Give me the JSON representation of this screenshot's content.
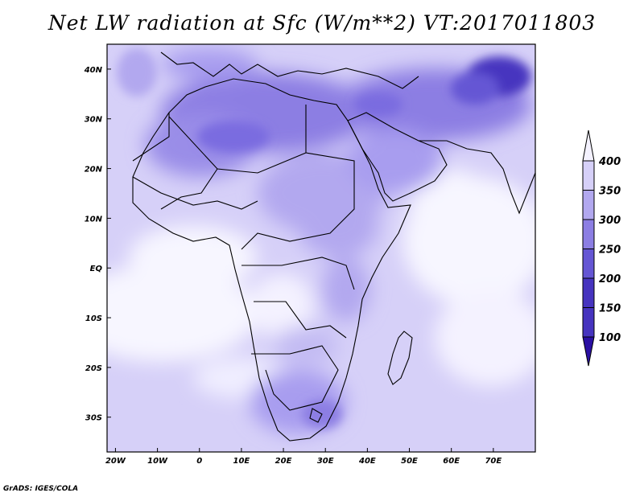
{
  "title": "Net LW radiation at Sfc (W/m**2) VT:2017011803",
  "footer": "GrADS: IGES/COLA",
  "chart_data": {
    "type": "heatmap",
    "variable": "Net LW radiation at Sfc",
    "units": "W/m**2",
    "valid_time": "2017011803",
    "lon_range": [
      -22,
      80
    ],
    "lat_range": [
      -37,
      45
    ],
    "x_ticks": [
      "20W",
      "10W",
      "0",
      "10E",
      "20E",
      "30E",
      "40E",
      "50E",
      "60E",
      "70E"
    ],
    "x_tick_values": [
      -20,
      -10,
      0,
      10,
      20,
      30,
      40,
      50,
      60,
      70
    ],
    "y_ticks": [
      "40N",
      "30N",
      "20N",
      "10N",
      "EQ",
      "10S",
      "20S",
      "30S"
    ],
    "y_tick_values": [
      40,
      30,
      20,
      10,
      0,
      -10,
      -20,
      -30
    ],
    "colorbar": {
      "levels": [
        "400",
        "350",
        "300",
        "250",
        "200",
        "150",
        "100"
      ],
      "colors_low_to_high": [
        "#2a0fa3",
        "#4634bf",
        "#6556d4",
        "#8c7ee3",
        "#b2a8ef",
        "#d6d0f8",
        "#f4f2ff"
      ]
    }
  }
}
